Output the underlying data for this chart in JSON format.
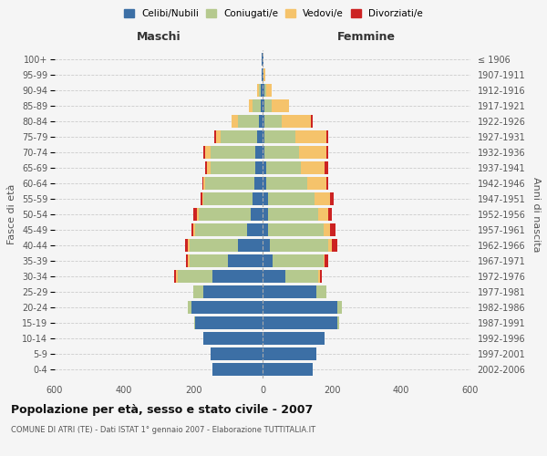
{
  "title": "Popolazione per età, sesso e stato civile - 2007",
  "subtitle": "COMUNE DI ATRI (TE) - Dati ISTAT 1° gennaio 2007 - Elaborazione TUTTITALIA.IT",
  "xlabel_left": "Maschi",
  "xlabel_right": "Femmine",
  "ylabel_left": "Fasce di età",
  "ylabel_right": "Anni di nascita",
  "age_groups": [
    "0-4",
    "5-9",
    "10-14",
    "15-19",
    "20-24",
    "25-29",
    "30-34",
    "35-39",
    "40-44",
    "45-49",
    "50-54",
    "55-59",
    "60-64",
    "65-69",
    "70-74",
    "75-79",
    "80-84",
    "85-89",
    "90-94",
    "95-99",
    "100+"
  ],
  "birth_years": [
    "2002-2006",
    "1997-2001",
    "1992-1996",
    "1987-1991",
    "1982-1986",
    "1977-1981",
    "1972-1976",
    "1967-1971",
    "1962-1966",
    "1957-1961",
    "1952-1956",
    "1947-1951",
    "1942-1946",
    "1937-1941",
    "1932-1936",
    "1927-1931",
    "1922-1926",
    "1917-1921",
    "1912-1916",
    "1907-1911",
    "≤ 1906"
  ],
  "colors": {
    "celibi": "#3c6fa5",
    "coniugati": "#b5c98e",
    "vedovi": "#f5c36b",
    "divorziati": "#cc2222"
  },
  "legend_labels": [
    "Celibi/Nubili",
    "Coniugati/e",
    "Vedovi/e",
    "Divorziati/e"
  ],
  "maschi": {
    "celibi": [
      145,
      150,
      170,
      195,
      205,
      170,
      145,
      100,
      70,
      45,
      35,
      30,
      25,
      20,
      20,
      15,
      10,
      5,
      5,
      2,
      2
    ],
    "coniugati": [
      0,
      0,
      0,
      2,
      10,
      30,
      100,
      110,
      140,
      150,
      150,
      140,
      140,
      130,
      130,
      105,
      60,
      25,
      5,
      0,
      0
    ],
    "vedovi": [
      0,
      0,
      0,
      0,
      0,
      0,
      5,
      5,
      5,
      5,
      5,
      5,
      5,
      10,
      15,
      15,
      20,
      10,
      5,
      0,
      0
    ],
    "divorziati": [
      0,
      0,
      0,
      0,
      0,
      0,
      5,
      5,
      10,
      5,
      10,
      5,
      5,
      5,
      5,
      5,
      0,
      0,
      0,
      0,
      0
    ]
  },
  "femmine": {
    "nubili": [
      145,
      155,
      180,
      215,
      215,
      155,
      65,
      30,
      20,
      15,
      15,
      15,
      10,
      10,
      5,
      5,
      5,
      5,
      5,
      2,
      2
    ],
    "coniugate": [
      0,
      0,
      0,
      5,
      15,
      30,
      95,
      145,
      170,
      160,
      145,
      135,
      120,
      100,
      100,
      90,
      50,
      20,
      5,
      0,
      0
    ],
    "vedove": [
      0,
      0,
      0,
      0,
      0,
      0,
      5,
      5,
      10,
      20,
      30,
      45,
      55,
      70,
      80,
      90,
      85,
      50,
      15,
      5,
      0
    ],
    "divorziate": [
      0,
      0,
      0,
      0,
      0,
      0,
      5,
      10,
      15,
      15,
      10,
      10,
      5,
      10,
      5,
      5,
      5,
      0,
      0,
      0,
      0
    ]
  },
  "xlim": 600,
  "background_color": "#f5f5f5",
  "grid_color": "#cccccc"
}
